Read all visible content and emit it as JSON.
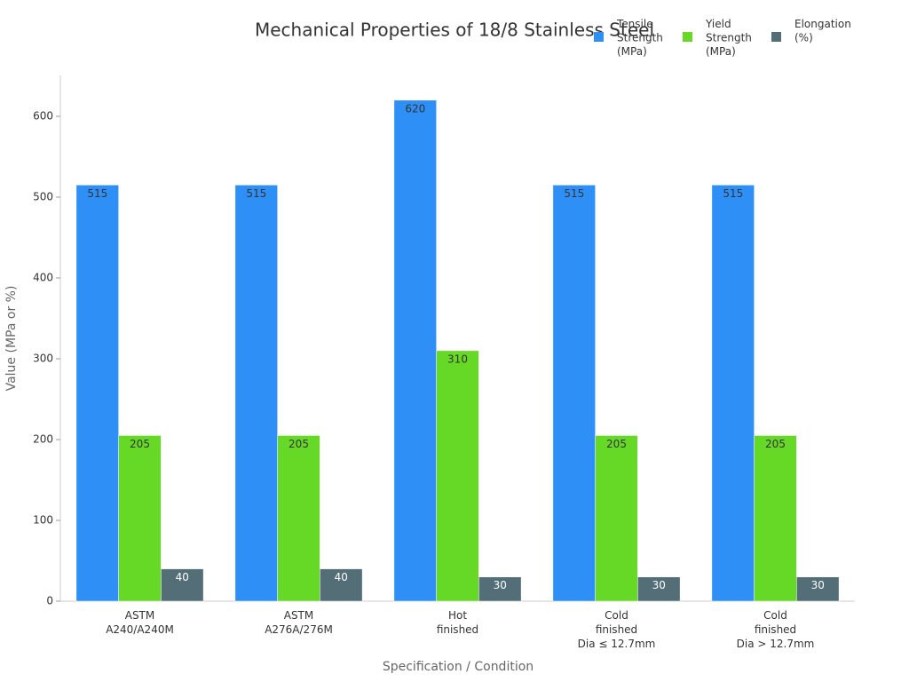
{
  "chart_data": {
    "type": "bar",
    "title": "Mechanical Properties of 18/8 Stainless Steel",
    "x_label": "Specification / Condition",
    "y_label": "Value (MPa or %)",
    "categories": [
      "ASTM\nA240/A240M",
      "ASTM\nA276A/276M",
      "Hot\nfinished",
      "Cold\nfinished\nDia ≤ 12.7mm",
      "Cold\nfinished\nDia > 12.7mm"
    ],
    "series": [
      {
        "name": "Tensile Strength (MPa)",
        "color": "#2e90f7",
        "values": [
          515,
          515,
          620,
          515,
          515
        ]
      },
      {
        "name": "Yield Strength (MPa)",
        "color": "#66d926",
        "values": [
          205,
          205,
          310,
          205,
          205
        ]
      },
      {
        "name": "Elongation (%)",
        "color": "#546e78",
        "values": [
          40,
          40,
          30,
          30,
          30
        ]
      }
    ],
    "ylim": [
      0,
      650
    ],
    "yticks": [
      0,
      100,
      200,
      300,
      400,
      500,
      600
    ],
    "grid": false
  }
}
